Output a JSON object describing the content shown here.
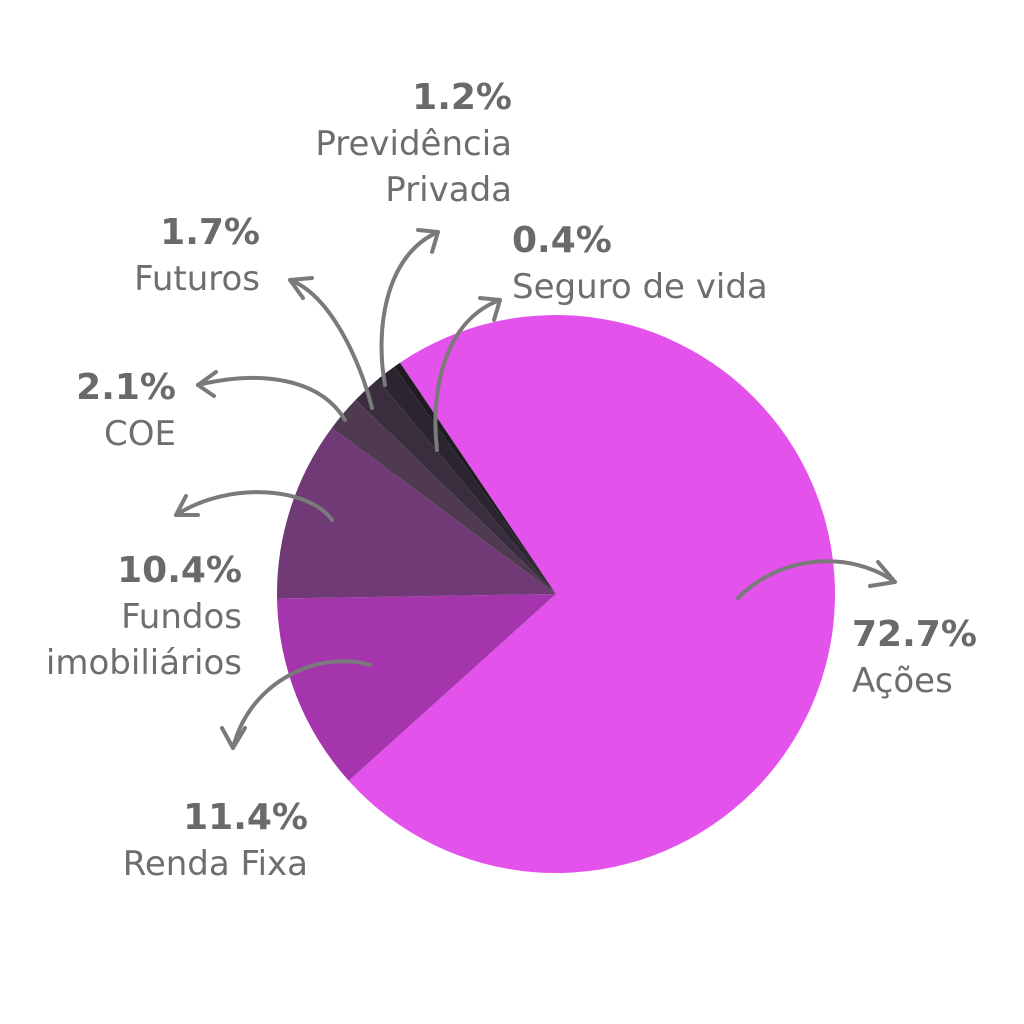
{
  "chart_data": {
    "type": "pie",
    "slices": [
      {
        "label": "Ações",
        "value": 72.7,
        "value_label": "72.7%",
        "color": "#e452ec"
      },
      {
        "label": "Renda Fixa",
        "value": 11.4,
        "value_label": "11.4%",
        "color": "#a535ad"
      },
      {
        "label": "Fundos\nimobiliários",
        "value": 10.4,
        "value_label": "10.4%",
        "color": "#703a76"
      },
      {
        "label": "COE",
        "value": 2.1,
        "value_label": "2.1%",
        "color": "#4f3a52"
      },
      {
        "label": "Futuros",
        "value": 1.7,
        "value_label": "1.7%",
        "color": "#3a2d3d"
      },
      {
        "label": "Previdência\nPrivada",
        "value": 1.2,
        "value_label": "1.2%",
        "color": "#2a2530"
      },
      {
        "label": "Seguro de vida",
        "value": 0.4,
        "value_label": "0.4%",
        "color": "#1e1c22"
      }
    ],
    "legend": "none",
    "label_arrow_color": "#7a7a7a"
  }
}
